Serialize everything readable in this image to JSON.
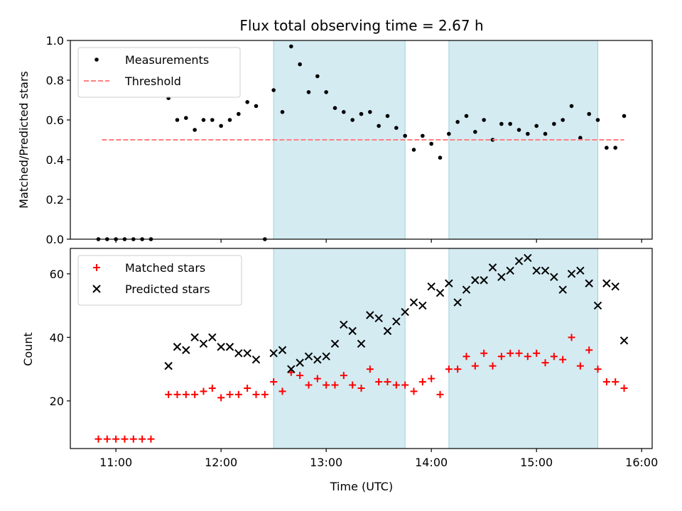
{
  "chart_data": [
    {
      "type": "scatter",
      "title": "Flux total observing time = 2.67 h",
      "xlabel": "",
      "ylabel": "Matched/Predicted stars",
      "ylim": [
        0,
        1.0
      ],
      "yticks": [
        0.0,
        0.2,
        0.4,
        0.6,
        0.8,
        1.0
      ],
      "ytick_labels": [
        "0.0",
        "0.2",
        "0.4",
        "0.6",
        "0.8",
        "1.0"
      ],
      "xlim": [
        "10:34",
        "16:06"
      ],
      "legend_position": "top-left",
      "shaded_intervals": [
        [
          "12:30",
          "13:45"
        ],
        [
          "14:10",
          "15:35"
        ]
      ],
      "shade_color": "#add8e6",
      "series": [
        {
          "name": "Measurements",
          "marker": "dot",
          "color": "#000000",
          "points": [
            [
              "10:50",
              0.0
            ],
            [
              "10:55",
              0.0
            ],
            [
              "11:00",
              0.0
            ],
            [
              "11:05",
              0.0
            ],
            [
              "11:10",
              0.0
            ],
            [
              "11:15",
              0.0
            ],
            [
              "11:20",
              0.0
            ],
            [
              "11:30",
              0.71
            ],
            [
              "11:35",
              0.6
            ],
            [
              "11:40",
              0.61
            ],
            [
              "11:45",
              0.55
            ],
            [
              "11:50",
              0.6
            ],
            [
              "11:55",
              0.6
            ],
            [
              "12:00",
              0.57
            ],
            [
              "12:05",
              0.6
            ],
            [
              "12:10",
              0.63
            ],
            [
              "12:15",
              0.69
            ],
            [
              "12:20",
              0.67
            ],
            [
              "12:25",
              0.0
            ],
            [
              "12:30",
              0.75
            ],
            [
              "12:35",
              0.64
            ],
            [
              "12:40",
              0.97
            ],
            [
              "12:45",
              0.88
            ],
            [
              "12:50",
              0.74
            ],
            [
              "12:55",
              0.82
            ],
            [
              "13:00",
              0.74
            ],
            [
              "13:05",
              0.66
            ],
            [
              "13:10",
              0.64
            ],
            [
              "13:15",
              0.6
            ],
            [
              "13:20",
              0.63
            ],
            [
              "13:25",
              0.64
            ],
            [
              "13:30",
              0.57
            ],
            [
              "13:35",
              0.62
            ],
            [
              "13:40",
              0.56
            ],
            [
              "13:45",
              0.52
            ],
            [
              "13:50",
              0.45
            ],
            [
              "13:55",
              0.52
            ],
            [
              "14:00",
              0.48
            ],
            [
              "14:05",
              0.41
            ],
            [
              "14:10",
              0.53
            ],
            [
              "14:15",
              0.59
            ],
            [
              "14:20",
              0.62
            ],
            [
              "14:25",
              0.54
            ],
            [
              "14:30",
              0.6
            ],
            [
              "14:35",
              0.5
            ],
            [
              "14:40",
              0.58
            ],
            [
              "14:45",
              0.58
            ],
            [
              "14:50",
              0.55
            ],
            [
              "14:55",
              0.53
            ],
            [
              "15:00",
              0.57
            ],
            [
              "15:05",
              0.53
            ],
            [
              "15:10",
              0.58
            ],
            [
              "15:15",
              0.6
            ],
            [
              "15:20",
              0.67
            ],
            [
              "15:25",
              0.51
            ],
            [
              "15:30",
              0.63
            ],
            [
              "15:35",
              0.6
            ],
            [
              "15:40",
              0.46
            ],
            [
              "15:45",
              0.46
            ],
            [
              "15:50",
              0.62
            ]
          ]
        },
        {
          "name": "Threshold",
          "marker": "dashed-line",
          "color": "#ff7f7f",
          "points": [
            [
              "10:52",
              0.5
            ],
            [
              "15:50",
              0.5
            ]
          ]
        }
      ]
    },
    {
      "type": "scatter",
      "title": "",
      "xlabel": "Time (UTC)",
      "ylabel": "Count",
      "ylim": [
        5,
        68
      ],
      "yticks": [
        20,
        40,
        60
      ],
      "ytick_labels": [
        "20",
        "40",
        "60"
      ],
      "xlim": [
        "10:34",
        "16:06"
      ],
      "xticks": [
        "11:00",
        "12:00",
        "13:00",
        "14:00",
        "15:00",
        "16:00"
      ],
      "xtick_labels": [
        "11:00",
        "12:00",
        "13:00",
        "14:00",
        "15:00",
        "16:00"
      ],
      "legend_position": "top-left",
      "shaded_intervals": [
        [
          "12:30",
          "13:45"
        ],
        [
          "14:10",
          "15:35"
        ]
      ],
      "shade_color": "#add8e6",
      "series": [
        {
          "name": "Matched stars",
          "marker": "plus",
          "color": "#ff0000",
          "points": [
            [
              "10:50",
              8
            ],
            [
              "10:55",
              8
            ],
            [
              "11:00",
              8
            ],
            [
              "11:05",
              8
            ],
            [
              "11:10",
              8
            ],
            [
              "11:15",
              8
            ],
            [
              "11:20",
              8
            ],
            [
              "11:30",
              22
            ],
            [
              "11:35",
              22
            ],
            [
              "11:40",
              22
            ],
            [
              "11:45",
              22
            ],
            [
              "11:50",
              23
            ],
            [
              "11:55",
              24
            ],
            [
              "12:00",
              21
            ],
            [
              "12:05",
              22
            ],
            [
              "12:10",
              22
            ],
            [
              "12:15",
              24
            ],
            [
              "12:20",
              22
            ],
            [
              "12:25",
              22
            ],
            [
              "12:30",
              26
            ],
            [
              "12:35",
              23
            ],
            [
              "12:40",
              29
            ],
            [
              "12:45",
              28
            ],
            [
              "12:50",
              25
            ],
            [
              "12:55",
              27
            ],
            [
              "13:00",
              25
            ],
            [
              "13:05",
              25
            ],
            [
              "13:10",
              28
            ],
            [
              "13:15",
              25
            ],
            [
              "13:20",
              24
            ],
            [
              "13:25",
              30
            ],
            [
              "13:30",
              26
            ],
            [
              "13:35",
              26
            ],
            [
              "13:40",
              25
            ],
            [
              "13:45",
              25
            ],
            [
              "13:50",
              23
            ],
            [
              "13:55",
              26
            ],
            [
              "14:00",
              27
            ],
            [
              "14:05",
              22
            ],
            [
              "14:10",
              30
            ],
            [
              "14:15",
              30
            ],
            [
              "14:20",
              34
            ],
            [
              "14:25",
              31
            ],
            [
              "14:30",
              35
            ],
            [
              "14:35",
              31
            ],
            [
              "14:40",
              34
            ],
            [
              "14:45",
              35
            ],
            [
              "14:50",
              35
            ],
            [
              "14:55",
              34
            ],
            [
              "15:00",
              35
            ],
            [
              "15:05",
              32
            ],
            [
              "15:10",
              34
            ],
            [
              "15:15",
              33
            ],
            [
              "15:20",
              40
            ],
            [
              "15:25",
              31
            ],
            [
              "15:30",
              36
            ],
            [
              "15:35",
              30
            ],
            [
              "15:40",
              26
            ],
            [
              "15:45",
              26
            ],
            [
              "15:50",
              24
            ]
          ]
        },
        {
          "name": "Predicted stars",
          "marker": "x",
          "color": "#000000",
          "points": [
            [
              "11:30",
              31
            ],
            [
              "11:35",
              37
            ],
            [
              "11:40",
              36
            ],
            [
              "11:45",
              40
            ],
            [
              "11:50",
              38
            ],
            [
              "11:55",
              40
            ],
            [
              "12:00",
              37
            ],
            [
              "12:05",
              37
            ],
            [
              "12:10",
              35
            ],
            [
              "12:15",
              35
            ],
            [
              "12:20",
              33
            ],
            [
              "12:30",
              35
            ],
            [
              "12:35",
              36
            ],
            [
              "12:40",
              30
            ],
            [
              "12:45",
              32
            ],
            [
              "12:50",
              34
            ],
            [
              "12:55",
              33
            ],
            [
              "13:00",
              34
            ],
            [
              "13:05",
              38
            ],
            [
              "13:10",
              44
            ],
            [
              "13:15",
              42
            ],
            [
              "13:20",
              38
            ],
            [
              "13:25",
              47
            ],
            [
              "13:30",
              46
            ],
            [
              "13:35",
              42
            ],
            [
              "13:40",
              45
            ],
            [
              "13:45",
              48
            ],
            [
              "13:50",
              51
            ],
            [
              "13:55",
              50
            ],
            [
              "14:00",
              56
            ],
            [
              "14:05",
              54
            ],
            [
              "14:10",
              57
            ],
            [
              "14:15",
              51
            ],
            [
              "14:20",
              55
            ],
            [
              "14:25",
              58
            ],
            [
              "14:30",
              58
            ],
            [
              "14:35",
              62
            ],
            [
              "14:40",
              59
            ],
            [
              "14:45",
              61
            ],
            [
              "14:50",
              64
            ],
            [
              "14:55",
              65
            ],
            [
              "15:00",
              61
            ],
            [
              "15:05",
              61
            ],
            [
              "15:10",
              59
            ],
            [
              "15:15",
              55
            ],
            [
              "15:20",
              60
            ],
            [
              "15:25",
              61
            ],
            [
              "15:30",
              57
            ],
            [
              "15:35",
              50
            ],
            [
              "15:40",
              57
            ],
            [
              "15:45",
              56
            ],
            [
              "15:50",
              39
            ]
          ]
        }
      ]
    }
  ]
}
